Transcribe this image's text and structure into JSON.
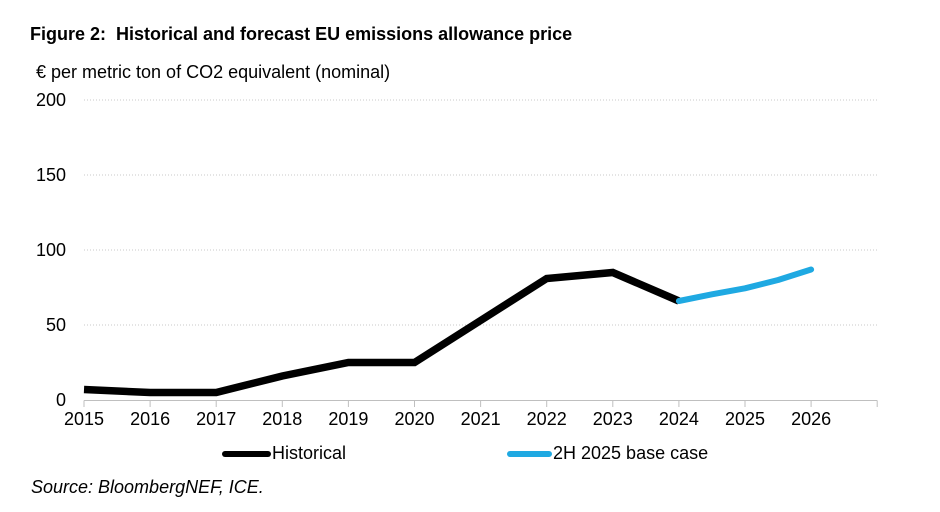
{
  "page": {
    "title": "Figure 2:  Historical and forecast EU emissions allowance price",
    "y_axis_title": "€ per metric ton of CO2 equivalent (nominal)",
    "source": "Source: BloombergNEF, ICE."
  },
  "chart_data": {
    "type": "line",
    "title": "Figure 2: Historical and forecast EU emissions allowance price",
    "ylabel": "€ per metric ton of CO2 equivalent (nominal)",
    "xlabel": "",
    "xlim": [
      2015,
      2027
    ],
    "ylim": [
      0,
      200
    ],
    "y_ticks": [
      0,
      50,
      100,
      150,
      200
    ],
    "x_ticks": [
      2015,
      2016,
      2017,
      2018,
      2019,
      2020,
      2021,
      2022,
      2023,
      2024,
      2025,
      2026
    ],
    "grid": "horizontal-dotted",
    "legend_position": "bottom",
    "style": {
      "axis_color": "#BFBFBF",
      "grid_color": "#C9C9C9",
      "text_color": "#000000",
      "historical_color": "#000000",
      "forecast_color": "#1FA9E2"
    },
    "series": [
      {
        "name": "Historical",
        "color": "#000000",
        "x": [
          2015,
          2016,
          2017,
          2018,
          2019,
          2020,
          2021,
          2022,
          2023,
          2024
        ],
        "values": [
          7,
          5,
          5,
          16,
          25,
          25,
          53,
          81,
          85,
          66
        ]
      },
      {
        "name": "2H 2025 base case",
        "color": "#1FA9E2",
        "x": [
          2024,
          2024.5,
          2025,
          2025.5,
          2026
        ],
        "values": [
          66,
          70.5,
          74.5,
          80,
          87
        ]
      }
    ]
  }
}
